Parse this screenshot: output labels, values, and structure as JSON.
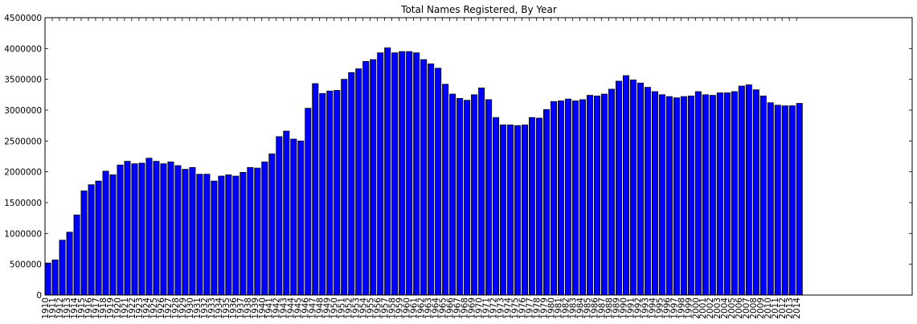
{
  "chart_data": {
    "type": "bar",
    "title": "Total Names Registered, By Year",
    "xlabel": "",
    "ylabel": "",
    "ylim": [
      0,
      4500000
    ],
    "xlim": [
      1910,
      2030
    ],
    "yticks": [
      0,
      500000,
      1000000,
      1500000,
      2000000,
      2500000,
      3000000,
      3500000,
      4000000,
      4500000
    ],
    "grid": false,
    "legend": "none",
    "bar_color": "#0000ff",
    "categories": [
      "1910",
      "1911",
      "1912",
      "1913",
      "1914",
      "1915",
      "1916",
      "1917",
      "1918",
      "1919",
      "1920",
      "1921",
      "1922",
      "1923",
      "1924",
      "1925",
      "1926",
      "1927",
      "1928",
      "1929",
      "1930",
      "1931",
      "1932",
      "1933",
      "1934",
      "1935",
      "1936",
      "1937",
      "1938",
      "1939",
      "1940",
      "1941",
      "1942",
      "1943",
      "1944",
      "1945",
      "1946",
      "1947",
      "1948",
      "1949",
      "1950",
      "1951",
      "1952",
      "1953",
      "1954",
      "1955",
      "1956",
      "1957",
      "1958",
      "1959",
      "1960",
      "1961",
      "1962",
      "1963",
      "1964",
      "1965",
      "1966",
      "1967",
      "1968",
      "1969",
      "1970",
      "1971",
      "1972",
      "1973",
      "1974",
      "1975",
      "1976",
      "1977",
      "1978",
      "1979",
      "1980",
      "1981",
      "1982",
      "1983",
      "1984",
      "1985",
      "1986",
      "1987",
      "1988",
      "1989",
      "1990",
      "1991",
      "1992",
      "1993",
      "1994",
      "1995",
      "1996",
      "1997",
      "1998",
      "1999",
      "2000",
      "2001",
      "2002",
      "2003",
      "2004",
      "2005",
      "2006",
      "2007",
      "2008",
      "2009",
      "2010",
      "2011",
      "2012",
      "2013",
      "2014"
    ],
    "values": [
      520000,
      570000,
      890000,
      1020000,
      1300000,
      1690000,
      1790000,
      1850000,
      2010000,
      1950000,
      2110000,
      2170000,
      2130000,
      2140000,
      2220000,
      2170000,
      2130000,
      2160000,
      2100000,
      2040000,
      2070000,
      1960000,
      1960000,
      1850000,
      1930000,
      1950000,
      1930000,
      1990000,
      2070000,
      2060000,
      2160000,
      2290000,
      2570000,
      2660000,
      2530000,
      2500000,
      3030000,
      3430000,
      3270000,
      3310000,
      3320000,
      3500000,
      3610000,
      3670000,
      3790000,
      3820000,
      3930000,
      4010000,
      3930000,
      3950000,
      3950000,
      3930000,
      3820000,
      3750000,
      3680000,
      3420000,
      3260000,
      3190000,
      3160000,
      3250000,
      3360000,
      3170000,
      2880000,
      2760000,
      2760000,
      2750000,
      2760000,
      2880000,
      2870000,
      3010000,
      3140000,
      3150000,
      3180000,
      3150000,
      3170000,
      3240000,
      3230000,
      3260000,
      3340000,
      3470000,
      3560000,
      3490000,
      3440000,
      3370000,
      3300000,
      3250000,
      3220000,
      3200000,
      3220000,
      3230000,
      3300000,
      3250000,
      3240000,
      3280000,
      3280000,
      3300000,
      3390000,
      3410000,
      3330000,
      3230000,
      3120000,
      3080000,
      3070000,
      3070000,
      3110000
    ]
  }
}
